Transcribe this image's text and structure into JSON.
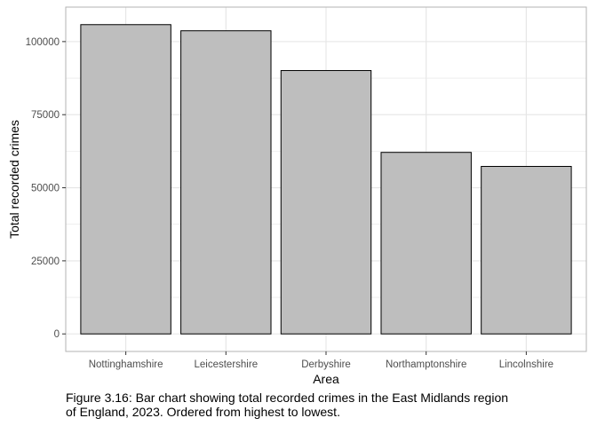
{
  "chart_data": {
    "type": "bar",
    "categories": [
      "Nottinghamshire",
      "Leicestershire",
      "Derbyshire",
      "Northamptonshire",
      "Lincolnshire"
    ],
    "values": [
      105800,
      103700,
      90100,
      62100,
      57300
    ],
    "xlabel": "Area",
    "ylabel": "Total recorded crimes",
    "ylim": [
      -6000,
      111800
    ],
    "yticks": [
      0,
      25000,
      50000,
      75000,
      100000
    ],
    "ytick_labels": [
      "0",
      "25000",
      "50000",
      "75000",
      "100000"
    ],
    "grid": true,
    "legend": "none",
    "bar_fill": "#bebebe",
    "bar_stroke": "#000000",
    "grid_color": "#e5e5e5",
    "panel_border_color": "#b3b3b3"
  },
  "caption": {
    "line1": "Figure 3.16: Bar chart showing total recorded crimes in the East Midlands region",
    "line2": "of England, 2023. Ordered from highest to lowest."
  }
}
